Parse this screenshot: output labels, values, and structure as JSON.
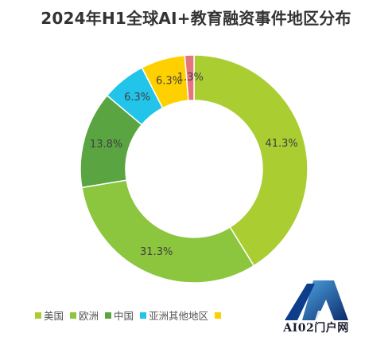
{
  "chart_data": {
    "type": "pie",
    "title": "2024年H1全球AI+教育融资事件地区分布",
    "categories": [
      "美国",
      "欧洲",
      "中国",
      "亚洲其他地区",
      "",
      ""
    ],
    "values": [
      41.3,
      31.3,
      13.8,
      6.3,
      6.3,
      1.3
    ],
    "labels": [
      "41.3%",
      "31.3%",
      "13.8%",
      "6.3%",
      "6.3%",
      "1.3%"
    ],
    "colors": [
      "#aacd32",
      "#8cc63e",
      "#5aa542",
      "#22c4ea",
      "#ffd000",
      "#e5747e"
    ],
    "legend_position": "bottom-left",
    "donut": true
  },
  "watermark": {
    "text": "AI02门户网"
  }
}
